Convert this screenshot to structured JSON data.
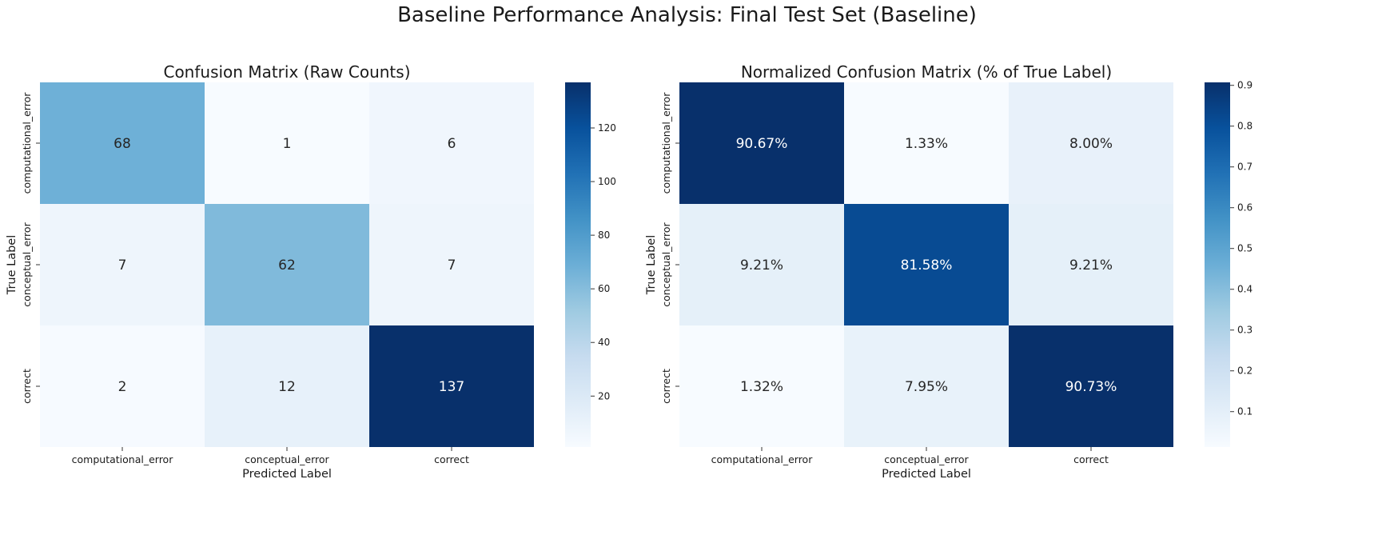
{
  "figure": {
    "title": "Baseline Performance Analysis: Final Test Set (Baseline)"
  },
  "colors": {
    "colormap": "Blues",
    "scale": [
      "#f7fbff",
      "#deebf7",
      "#c6dbef",
      "#9ecae1",
      "#6baed6",
      "#4292c6",
      "#2171b5",
      "#08519c",
      "#08306b"
    ],
    "text_light": "#ffffff",
    "text_dark": "#262626"
  },
  "chart_data": [
    {
      "type": "heatmap",
      "title": "Confusion Matrix (Raw Counts)",
      "xlabel": "Predicted Label",
      "ylabel": "True Label",
      "x_categories": [
        "computational_error",
        "conceptual_error",
        "correct"
      ],
      "y_categories": [
        "computational_error",
        "conceptual_error",
        "correct"
      ],
      "values": [
        [
          68,
          1,
          6
        ],
        [
          7,
          62,
          7
        ],
        [
          2,
          12,
          137
        ]
      ],
      "annotations": [
        [
          "68",
          "1",
          "6"
        ],
        [
          "7",
          "62",
          "7"
        ],
        [
          "2",
          "12",
          "137"
        ]
      ],
      "vmin": 1,
      "vmax": 137,
      "colorbar_ticks": [
        "20",
        "40",
        "60",
        "80",
        "100",
        "120"
      ],
      "colorbar_tick_values": [
        20,
        40,
        60,
        80,
        100,
        120
      ]
    },
    {
      "type": "heatmap",
      "title": "Normalized Confusion Matrix (% of True Label)",
      "xlabel": "Predicted Label",
      "ylabel": "True Label",
      "x_categories": [
        "computational_error",
        "conceptual_error",
        "correct"
      ],
      "y_categories": [
        "computational_error",
        "conceptual_error",
        "correct"
      ],
      "values": [
        [
          0.9067,
          0.0133,
          0.08
        ],
        [
          0.0921,
          0.8158,
          0.0921
        ],
        [
          0.0132,
          0.0795,
          0.9073
        ]
      ],
      "annotations": [
        [
          "90.67%",
          "1.33%",
          "8.00%"
        ],
        [
          "9.21%",
          "81.58%",
          "9.21%"
        ],
        [
          "1.32%",
          "7.95%",
          "90.73%"
        ]
      ],
      "vmin": 0.0132,
      "vmax": 0.9073,
      "colorbar_ticks": [
        "0.1",
        "0.2",
        "0.3",
        "0.4",
        "0.5",
        "0.6",
        "0.7",
        "0.8",
        "0.9"
      ],
      "colorbar_tick_values": [
        0.1,
        0.2,
        0.3,
        0.4,
        0.5,
        0.6,
        0.7,
        0.8,
        0.9
      ]
    }
  ]
}
